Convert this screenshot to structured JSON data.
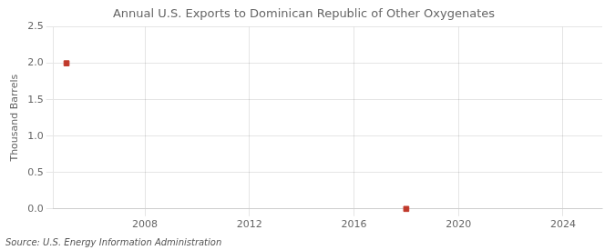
{
  "chart_data": {
    "type": "scatter",
    "title": "Annual U.S. Exports to Dominican Republic of Other Oxygenates",
    "ylabel": "Thousand Barrels",
    "source": "Source: U.S. Energy Information Administration",
    "x": [
      2005,
      2018
    ],
    "values": [
      2.0,
      0.0
    ],
    "color": "#c0392b",
    "marker": "square",
    "xlim": [
      2004.5,
      2025.5
    ],
    "xticks": [
      2008,
      2012,
      2016,
      2020,
      2024
    ],
    "ylim": [
      0,
      2.5
    ],
    "yticks": [
      {
        "value": 0,
        "label": "0.0"
      },
      0.5,
      {
        "value": 1,
        "label": "1.0"
      },
      1.5,
      {
        "value": 2,
        "label": "2.0"
      },
      2.5
    ],
    "grid": true
  }
}
